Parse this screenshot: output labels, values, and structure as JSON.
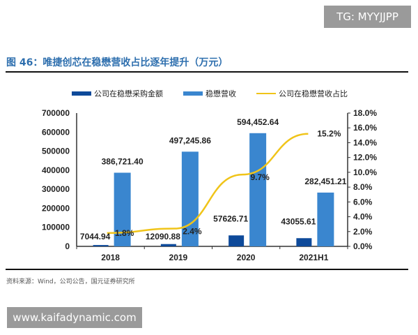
{
  "header": {
    "title": "图 46：唯捷创芯在稳懋营收占比逐年提升（万元）"
  },
  "footer": {
    "source": "资料来源：Wind，公司公告，国元证券研究所"
  },
  "watermarks": {
    "top": "TG: MYYJJPP",
    "bottom": "www.kaifadynamic.com"
  },
  "chart_data": {
    "type": "bar+line",
    "categories": [
      "2018",
      "2019",
      "2020",
      "2021H1"
    ],
    "series": [
      {
        "name": "公司在稳懋采购金额",
        "type": "bar",
        "axis": "left",
        "color": "#0e4a9a",
        "values": [
          7044.94,
          12090.88,
          57626.71,
          43055.61
        ],
        "labels": [
          "7044.94",
          "12090.88",
          "57626.71",
          "43055.61"
        ]
      },
      {
        "name": "稳懋营收",
        "type": "bar",
        "axis": "left",
        "color": "#3a86cf",
        "values": [
          386721.4,
          497245.86,
          594452.64,
          282451.21
        ],
        "labels": [
          "386,721.40",
          "497,245.86",
          "594,452.64",
          "282,451.21"
        ]
      },
      {
        "name": "公司在稳懋营收占比",
        "type": "line",
        "axis": "right",
        "color": "#f0c419",
        "values": [
          1.8,
          2.4,
          9.7,
          15.2
        ],
        "labels": [
          "1.8%",
          "2.4%",
          "9.7%",
          "15.2%"
        ]
      }
    ],
    "left_axis": {
      "range": [
        0,
        700000
      ],
      "ticks": [
        "0",
        "100000",
        "200000",
        "300000",
        "400000",
        "500000",
        "600000",
        "700000"
      ]
    },
    "right_axis": {
      "range": [
        0,
        18
      ],
      "ticks": [
        "0.0%",
        "2.0%",
        "4.0%",
        "6.0%",
        "8.0%",
        "10.0%",
        "12.0%",
        "14.0%",
        "16.0%",
        "18.0%"
      ]
    },
    "legend": "top",
    "grid": false
  }
}
